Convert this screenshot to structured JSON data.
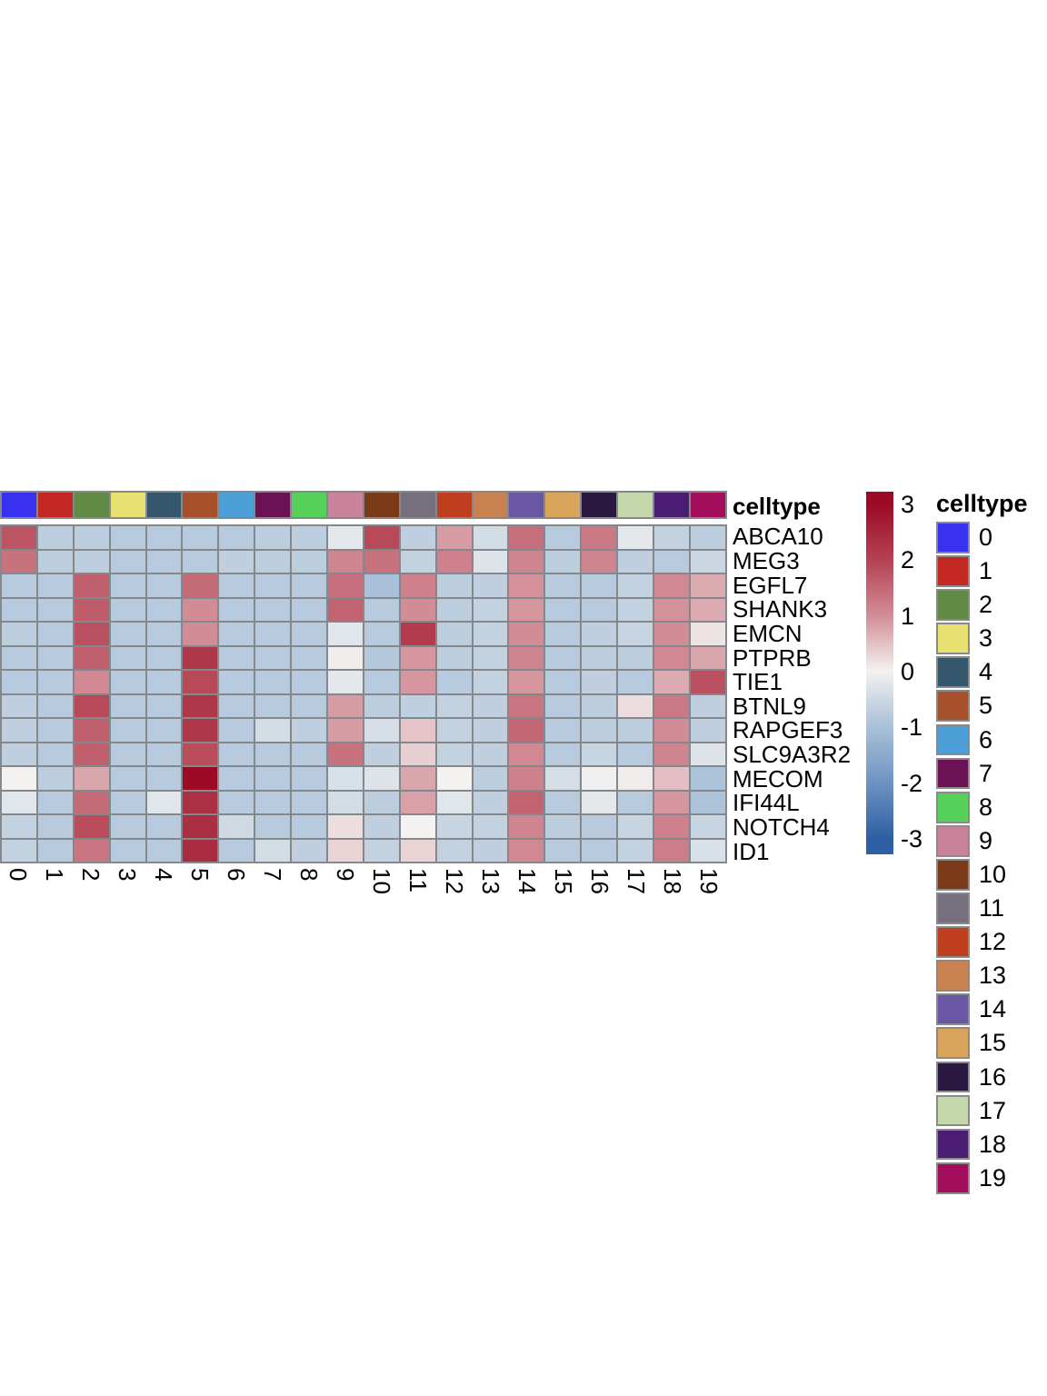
{
  "figure": {
    "annotation_title": "celltype",
    "legend_title": "celltype"
  },
  "chart_data": {
    "type": "heatmap",
    "title": "",
    "rows": [
      "ABCA10",
      "MEG3",
      "EGFL7",
      "SHANK3",
      "EMCN",
      "PTPRB",
      "TIE1",
      "BTNL9",
      "RAPGEF3",
      "SLC9A3R2",
      "MECOM",
      "IFI44L",
      "NOTCH4",
      "ID1"
    ],
    "columns": [
      "0",
      "1",
      "2",
      "3",
      "4",
      "5",
      "6",
      "7",
      "8",
      "9",
      "10",
      "11",
      "12",
      "13",
      "14",
      "15",
      "16",
      "17",
      "18",
      "19"
    ],
    "values": [
      [
        1.75,
        -0.75,
        -0.75,
        -0.8,
        -0.8,
        -0.8,
        -0.8,
        -0.75,
        -0.75,
        -0.2,
        1.9,
        -0.7,
        0.85,
        -0.45,
        1.4,
        -0.8,
        1.25,
        -0.2,
        -0.65,
        -0.75
      ],
      [
        1.35,
        -0.75,
        -0.75,
        -0.8,
        -0.8,
        -0.8,
        -0.7,
        -0.75,
        -0.75,
        1.1,
        1.35,
        -0.65,
        1.15,
        -0.3,
        1.1,
        -0.75,
        1.1,
        -0.7,
        -0.8,
        -0.55
      ],
      [
        -0.8,
        -0.8,
        1.6,
        -0.8,
        -0.8,
        1.45,
        -0.8,
        -0.8,
        -0.8,
        1.4,
        -1.0,
        1.15,
        -0.75,
        -0.7,
        0.95,
        -0.8,
        -0.8,
        -0.65,
        1.05,
        0.7
      ],
      [
        -0.8,
        -0.8,
        1.65,
        -0.8,
        -0.8,
        1.0,
        -0.8,
        -0.8,
        -0.8,
        1.55,
        -0.8,
        1.0,
        -0.75,
        -0.65,
        0.9,
        -0.8,
        -0.8,
        -0.65,
        0.95,
        0.7
      ],
      [
        -0.75,
        -0.8,
        1.8,
        -0.8,
        -0.8,
        1.0,
        -0.8,
        -0.8,
        -0.8,
        -0.25,
        -0.8,
        2.1,
        -0.75,
        -0.65,
        1.0,
        -0.8,
        -0.7,
        -0.6,
        1.0,
        0.15
      ],
      [
        -0.8,
        -0.8,
        1.6,
        -0.8,
        -0.8,
        2.2,
        -0.8,
        -0.8,
        -0.8,
        0.05,
        -0.85,
        0.9,
        -0.75,
        -0.65,
        1.1,
        -0.8,
        -0.75,
        -0.75,
        1.05,
        0.75
      ],
      [
        -0.8,
        -0.8,
        1.05,
        -0.8,
        -0.8,
        1.9,
        -0.8,
        -0.8,
        -0.8,
        -0.2,
        -0.8,
        0.9,
        -0.8,
        -0.65,
        0.9,
        -0.8,
        -0.7,
        -0.8,
        0.7,
        1.8
      ],
      [
        -0.7,
        -0.8,
        1.9,
        -0.8,
        -0.8,
        2.2,
        -0.8,
        -0.8,
        -0.8,
        0.85,
        -0.75,
        -0.7,
        -0.65,
        -0.7,
        1.3,
        -0.8,
        -0.75,
        0.2,
        1.25,
        -0.7
      ],
      [
        -0.7,
        -0.8,
        1.6,
        -0.8,
        -0.8,
        2.2,
        -0.8,
        -0.45,
        -0.7,
        0.85,
        -0.4,
        0.45,
        -0.65,
        -0.7,
        1.5,
        -0.8,
        -0.75,
        -0.75,
        1.0,
        -0.7
      ],
      [
        -0.7,
        -0.8,
        1.6,
        -0.8,
        -0.8,
        1.85,
        -0.8,
        -0.8,
        -0.8,
        1.35,
        -0.7,
        0.35,
        -0.65,
        -0.7,
        1.05,
        -0.8,
        -0.6,
        -0.8,
        1.1,
        -0.3
      ],
      [
        0.0,
        -0.75,
        0.75,
        -0.8,
        -0.8,
        3.0,
        -0.8,
        -0.8,
        -0.8,
        -0.35,
        -0.3,
        0.75,
        0.0,
        -0.75,
        1.15,
        -0.4,
        -0.05,
        0.05,
        0.5,
        -0.95
      ],
      [
        -0.25,
        -0.8,
        1.45,
        -0.8,
        -0.25,
        2.3,
        -0.8,
        -0.8,
        -0.8,
        -0.45,
        -0.75,
        0.8,
        -0.25,
        -0.7,
        1.55,
        -0.8,
        -0.2,
        -0.8,
        0.9,
        -0.95
      ],
      [
        -0.65,
        -0.8,
        1.85,
        -0.8,
        -0.8,
        2.35,
        -0.5,
        -0.8,
        -0.8,
        0.2,
        -0.7,
        0.0,
        -0.6,
        -0.65,
        1.1,
        -0.75,
        -0.8,
        -0.6,
        1.15,
        -0.6
      ],
      [
        -0.65,
        -0.8,
        1.3,
        -0.8,
        -0.8,
        2.4,
        -0.8,
        -0.45,
        -0.7,
        0.3,
        -0.65,
        0.3,
        -0.65,
        -0.7,
        1.05,
        -0.8,
        -0.8,
        -0.65,
        1.2,
        -0.35
      ]
    ],
    "value_range": [
      -3,
      3
    ],
    "colorbar_ticks": [
      "3",
      "2",
      "1",
      "0",
      "-1",
      "-2",
      "-3"
    ],
    "colormap_stops": [
      [
        -3,
        "#2E5FA4"
      ],
      [
        -2,
        "#6E94C2"
      ],
      [
        -1,
        "#A9C0D8"
      ],
      [
        0,
        "#F3F2F0"
      ],
      [
        1,
        "#D28C96"
      ],
      [
        2,
        "#B44252"
      ],
      [
        3,
        "#9C0A24"
      ]
    ],
    "grid_line_color": "#84878b",
    "legend_position": "right",
    "column_annotation": {
      "name": "celltype",
      "classes": [
        "0",
        "1",
        "2",
        "3",
        "4",
        "5",
        "6",
        "7",
        "8",
        "9",
        "10",
        "11",
        "12",
        "13",
        "14",
        "15",
        "16",
        "17",
        "18",
        "19"
      ],
      "colors": [
        "#3931F0",
        "#C42823",
        "#618B44",
        "#E9E072",
        "#35566B",
        "#A6512B",
        "#4C9FD6",
        "#6C1254",
        "#55D058",
        "#C8829A",
        "#7B3A18",
        "#76707E",
        "#BE3E1E",
        "#CA8150",
        "#6957A5",
        "#D9A45C",
        "#2A1840",
        "#C4D8AC",
        "#4A1D72",
        "#A30E5C"
      ]
    }
  }
}
